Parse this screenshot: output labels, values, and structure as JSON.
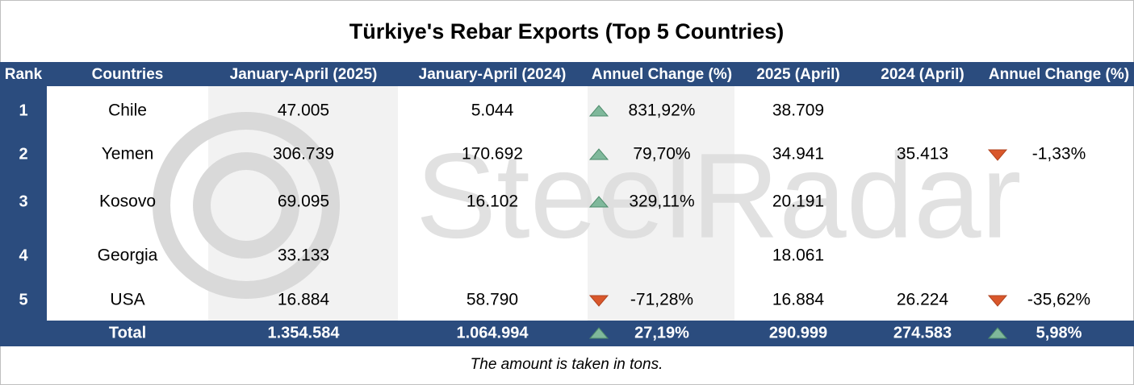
{
  "title": "Türkiye's Rebar Exports (Top 5 Countries)",
  "watermark": "SteelRadar",
  "table": {
    "columns": [
      "Rank",
      "Countries",
      "January-April (2025)",
      "January-April (2024)",
      "Annuel Change (%)",
      "2025 (April)",
      "2024 (April)",
      "Annuel Change (%)"
    ],
    "rows": [
      [
        1,
        "Chile",
        "47.005",
        "5.044",
        "831,92%",
        "38.709",
        null,
        null
      ],
      [
        2,
        "Yemen",
        "306.739",
        "170.692",
        "79,70%",
        "34.941",
        "35.413",
        "-1,33%"
      ],
      [
        3,
        "Kosovo",
        "69.095",
        "16.102",
        "329,11%",
        "20.191",
        null,
        null
      ],
      [
        4,
        "Georgia",
        "33.133",
        null,
        null,
        "18.061",
        null,
        null
      ],
      [
        5,
        "USA",
        "16.884",
        "58.790",
        "-71,28%",
        "16.884",
        "26.224",
        "-35,62%"
      ]
    ],
    "total": [
      "Total",
      "1.354.584",
      "1.064.994",
      "27,19%",
      "290.999",
      "274.583",
      "5,98%"
    ]
  },
  "footnote": "The amount is taken in tons."
}
